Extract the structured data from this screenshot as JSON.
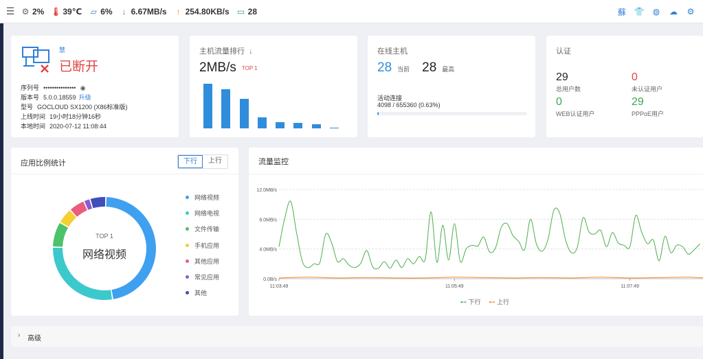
{
  "topbar": {
    "stats": [
      {
        "icon": "cpu-icon",
        "glyph": "⚙",
        "value": "2%",
        "color": "#666666"
      },
      {
        "icon": "thermometer-icon",
        "glyph": "🌡",
        "value": "39℃",
        "color": "#e04444"
      },
      {
        "icon": "memory-icon",
        "glyph": "▱",
        "value": "6%",
        "color": "#2f7fd6"
      },
      {
        "icon": "download-arrow-icon",
        "glyph": "↓",
        "value": "6.67MB/s",
        "color": "#3aa655"
      },
      {
        "icon": "upload-arrow-icon",
        "glyph": "↑",
        "value": "254.80KB/s",
        "color": "#f08a24"
      },
      {
        "icon": "monitor-icon",
        "glyph": "▭",
        "value": "28",
        "color": "#3aa655"
      }
    ],
    "right_icons": [
      {
        "name": "cloud-logo-icon",
        "glyph": "蘇"
      },
      {
        "name": "shirt-icon",
        "glyph": "👕"
      },
      {
        "name": "globe-icon",
        "glyph": "◍"
      },
      {
        "name": "cloud-upload-icon",
        "glyph": "☁"
      },
      {
        "name": "gear-icon",
        "glyph": "⚙"
      }
    ]
  },
  "status_card": {
    "small_label": "禁",
    "status": "已断开",
    "info": [
      {
        "label": "序列号",
        "value": "•••••••••••••••",
        "extra_icon": "eye-icon"
      },
      {
        "label": "版本号",
        "value": "5.0.0.18559",
        "link": "升级"
      },
      {
        "label": "型号",
        "value": "GOCLOUD SX1200 (X86标准版)"
      },
      {
        "label": "上线时间",
        "value": "19小时18分钟16秒"
      },
      {
        "label": "本地时间",
        "value": "2020-07-12 11:08:44"
      }
    ]
  },
  "traffic_rank_card": {
    "title": "主机流量排行",
    "title_icon": "sort-down-icon",
    "value": "2MB/s",
    "badge": "TOP 1",
    "bar_color": "#2f8ddb",
    "bars": [
      1.0,
      0.88,
      0.66,
      0.25,
      0.14,
      0.12,
      0.1,
      0.02
    ]
  },
  "hosts_card": {
    "title": "在线主机",
    "current_value": "28",
    "current_label": "当前",
    "max_value": "28",
    "max_label": "最高",
    "conn_title": "活动连接",
    "conn_value": "4098 / 655360 (0.63%)",
    "conn_fraction": 0.0063
  },
  "auth_card": {
    "title": "认证",
    "items": [
      {
        "value": "29",
        "label": "总用户数",
        "color": "#222222"
      },
      {
        "value": "0",
        "label": "未认证用户",
        "color": "#e04444"
      },
      {
        "value": "0",
        "label": "WEB认证用户",
        "color": "#3aa655"
      },
      {
        "value": "29",
        "label": "PPPoE用户",
        "color": "#3aa655"
      }
    ]
  },
  "app_card": {
    "title": "应用比例统计",
    "tabs": [
      {
        "label": "下行",
        "active": true
      },
      {
        "label": "上行",
        "active": false
      }
    ],
    "center_top": "TOP 1",
    "center_label": "网络视频",
    "slices": [
      {
        "name": "网络视频",
        "value": 47,
        "color": "#3fa0f0"
      },
      {
        "name": "网络电视",
        "value": 28,
        "color": "#3cc9cc"
      },
      {
        "name": "文件传输",
        "value": 8,
        "color": "#4cc26a"
      },
      {
        "name": "手机应用",
        "value": 5,
        "color": "#f5cf33"
      },
      {
        "name": "其他应用",
        "value": 5,
        "color": "#ea5d7c"
      },
      {
        "name": "常见应用",
        "value": 2,
        "color": "#8a5bd6"
      },
      {
        "name": "其他",
        "value": 5,
        "color": "#3f4eb8"
      }
    ]
  },
  "monitor_card": {
    "title": "流量监控",
    "legend": [
      {
        "name": "下行",
        "color": "#4cae4c"
      },
      {
        "name": "上行",
        "color": "#f08a24"
      }
    ]
  },
  "chart_data": {
    "type": "line",
    "title": "流量监控",
    "ylabel": "",
    "xlabel": "",
    "y_ticks": [
      "0.0B/s",
      "4.0MB/s",
      "8.0MB/s",
      "12.0MB/s"
    ],
    "ylim": [
      0,
      12
    ],
    "x_ticks": [
      "11:03:49",
      "11:05:49",
      "11:07:49"
    ],
    "xlim": [
      0,
      290
    ],
    "grid": true,
    "legend_position": "bottom",
    "series": [
      {
        "name": "下行",
        "color": "#4cae4c",
        "x": [
          0,
          4,
          8,
          12,
          16,
          20,
          24,
          28,
          32,
          36,
          40,
          44,
          48,
          52,
          56,
          60,
          64,
          68,
          72,
          76,
          80,
          84,
          88,
          92,
          96,
          100,
          104,
          108,
          112,
          116,
          120,
          124,
          128,
          132,
          136,
          140,
          144,
          148,
          152,
          156,
          160,
          164,
          168,
          172,
          176,
          180,
          184,
          188,
          192,
          196,
          200,
          204,
          208,
          212,
          216,
          220,
          224,
          228,
          232,
          236,
          240,
          244,
          248,
          252,
          256,
          260,
          264,
          268,
          272,
          276,
          280,
          284,
          288
        ],
        "values": [
          4.3,
          8.2,
          10.4,
          6.2,
          2.3,
          1.5,
          2.0,
          2.2,
          6.0,
          4.8,
          2.3,
          2.7,
          1.8,
          1.5,
          2.1,
          3.8,
          1.6,
          1.4,
          2.3,
          1.4,
          2.5,
          1.5,
          2.7,
          2.0,
          3.0,
          2.6,
          9.0,
          2.2,
          7.2,
          2.5,
          7.4,
          2.3,
          4.0,
          4.5,
          4.4,
          5.6,
          3.6,
          4.1,
          6.9,
          7.4,
          5.8,
          5.0,
          3.9,
          8.0,
          4.7,
          3.7,
          5.3,
          9.2,
          8.8,
          5.2,
          3.5,
          4.2,
          8.2,
          6.3,
          6.0,
          6.5,
          4.3,
          6.2,
          4.8,
          4.5,
          4.3,
          8.5,
          6.3,
          4.7,
          5.2,
          2.4,
          5.7,
          3.5,
          4.5,
          4.3,
          3.3,
          3.9,
          4.7
        ]
      },
      {
        "name": "上行",
        "color": "#f08a24",
        "x": [
          0,
          20,
          40,
          60,
          80,
          100,
          120,
          140,
          160,
          180,
          200,
          220,
          240,
          260,
          280,
          290
        ],
        "values": [
          0.1,
          0.2,
          0.1,
          0.15,
          0.1,
          0.1,
          0.2,
          0.15,
          0.1,
          0.15,
          0.1,
          0.2,
          0.1,
          0.15,
          0.2,
          0.1
        ]
      }
    ]
  },
  "advanced": {
    "label": "高级"
  }
}
